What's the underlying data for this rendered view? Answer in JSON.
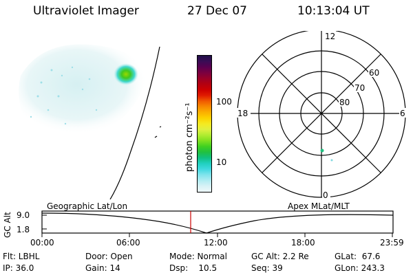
{
  "header": {
    "instrument": "Ultraviolet Imager",
    "date": "27 Dec 07",
    "time": "10:13:04 UT"
  },
  "colorbar": {
    "unit_label": "photon cm⁻²s⁻¹",
    "ticks": [
      "100",
      "10"
    ],
    "colors": [
      "#201048",
      "#3a0c55",
      "#5a0050",
      "#7a0040",
      "#9a0028",
      "#b30010",
      "#cc0000",
      "#e01a00",
      "#f05a00",
      "#f78a00",
      "#fbb000",
      "#fcd200",
      "#f5ea20",
      "#e0f040",
      "#b0ec30",
      "#80e020",
      "#40d020",
      "#20c040",
      "#10c080",
      "#20d0c0",
      "#40d8e0",
      "#80e4ec",
      "#b0ecf2",
      "#d8f2f6",
      "#eef8fa"
    ]
  },
  "polar_plot": {
    "mlt_labels": {
      "top": "12",
      "left": "18",
      "right": "6",
      "bottom": "0"
    },
    "lat_labels": [
      "60",
      "70",
      "80"
    ]
  },
  "timeline": {
    "y_axis_label": "GC Alt",
    "y_ticks": [
      "9.0",
      "1.8"
    ],
    "left_caption": "Geographic Lat/Lon",
    "right_caption": "Apex MLat/MLT",
    "x_ticks": [
      "00:00",
      "06:00",
      "12:00",
      "18:00",
      "23:59"
    ],
    "marker_color": "#cc0000"
  },
  "info": {
    "flt": "Flt: LBHL",
    "ip": "IP: 36.0",
    "door": "Door: Open",
    "gain": "Gain: 14",
    "mode": "Mode: Normal",
    "dsp": "Dsp:    10.5",
    "gc_alt": "GC Alt: 2.2 Re",
    "seq": "Seq: 39",
    "glat": "GLat:  67.6",
    "glon": "GLon: 243.3"
  }
}
